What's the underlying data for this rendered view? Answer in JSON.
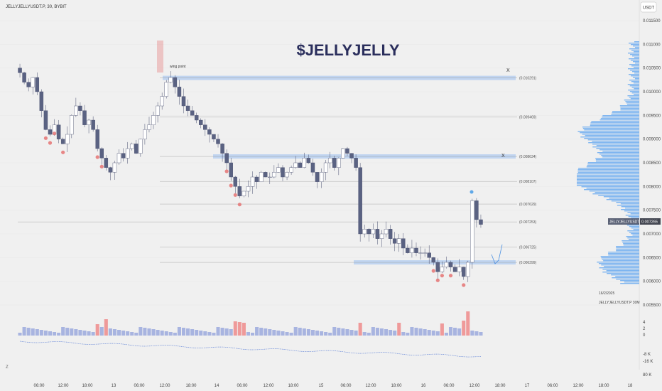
{
  "header": {
    "symbol": "JELLYJELLYUSDT.P, 30, BYBIT",
    "currency": "USDT",
    "title": "$JELLYJELLY"
  },
  "annotations": {
    "swing_label": "wing point",
    "x_marker_1": "X",
    "x_marker_2": "X"
  },
  "price_tag": {
    "label": "JELLYJELLYUSDT.P",
    "value": "0.007265"
  },
  "volume_profile_info": {
    "date": "16/2/2025",
    "label": "JELLYJELLYUSDT.P 30M"
  },
  "levels": [
    {
      "value": 0.010291,
      "label": "(0.010291)"
    },
    {
      "value": 0.009469,
      "label": "(0.009469)"
    },
    {
      "value": 0.008634,
      "label": "(0.008634)"
    },
    {
      "value": 0.008107,
      "label": "(0.008107)"
    },
    {
      "value": 0.007629,
      "label": "(0.007629)"
    },
    {
      "value": 0.007253,
      "label": "(0.007253)"
    },
    {
      "value": 0.006725,
      "label": "(0.006725)"
    },
    {
      "value": 0.006399,
      "label": "(0.006399)"
    }
  ],
  "zones": [
    {
      "value": 0.010291
    },
    {
      "value": 0.008634
    },
    {
      "value": 0.006399
    }
  ],
  "chart_data": {
    "type": "candlestick",
    "y_ticks": [
      "0.011500",
      "0.011000",
      "0.010500",
      "0.010000",
      "0.009500",
      "0.009000",
      "0.008500",
      "0.008000",
      "0.007500",
      "0.007000",
      "0.006500",
      "0.006000",
      "0.005500"
    ],
    "ylim": [
      0.0055,
      0.0115
    ],
    "x_ticks": [
      "06:00",
      "12:00",
      "18:00",
      "13",
      "06:00",
      "12:00",
      "18:00",
      "14",
      "06:00",
      "12:00",
      "18:00",
      "15",
      "06:00",
      "12:00",
      "18:00",
      "16",
      "06:00",
      "12:00",
      "18:00",
      "17",
      "06:00",
      "12:00",
      "18:00",
      "18"
    ],
    "close_series": [
      0.0104,
      0.0102,
      0.0101,
      0.0103,
      0.01,
      0.0096,
      0.0092,
      0.0091,
      0.0093,
      0.009,
      0.0089,
      0.0091,
      0.0095,
      0.0097,
      0.0096,
      0.0093,
      0.0094,
      0.0092,
      0.0088,
      0.0086,
      0.0084,
      0.0083,
      0.0085,
      0.0087,
      0.0086,
      0.0088,
      0.0089,
      0.0087,
      0.009,
      0.0092,
      0.0093,
      0.0095,
      0.0097,
      0.0099,
      0.0102,
      0.0103,
      0.0101,
      0.0099,
      0.0097,
      0.0096,
      0.0095,
      0.0094,
      0.0093,
      0.0092,
      0.0091,
      0.009,
      0.0089,
      0.0087,
      0.0085,
      0.0082,
      0.008,
      0.0078,
      0.0079,
      0.008,
      0.0082,
      0.0081,
      0.0083,
      0.0082,
      0.0082,
      0.0083,
      0.0084,
      0.0082,
      0.0083,
      0.0084,
      0.0085,
      0.0084,
      0.0086,
      0.0085,
      0.0083,
      0.0081,
      0.0083,
      0.0085,
      0.0086,
      0.0084,
      0.0086,
      0.0088,
      0.0087,
      0.0086,
      0.0084,
      0.007,
      0.0071,
      0.007,
      0.0071,
      0.0069,
      0.007,
      0.0071,
      0.0069,
      0.0068,
      0.0069,
      0.0067,
      0.0066,
      0.0067,
      0.0066,
      0.0066,
      0.0066,
      0.0065,
      0.0064,
      0.0062,
      0.0063,
      0.0064,
      0.0063,
      0.0062,
      0.0063,
      0.0061,
      0.0064,
      0.0077,
      0.0073,
      0.0072
    ],
    "volume_bars_up": [],
    "volume_axis": [
      "4",
      "2",
      "0",
      "-8 K",
      "-16 K",
      "80 K"
    ]
  }
}
